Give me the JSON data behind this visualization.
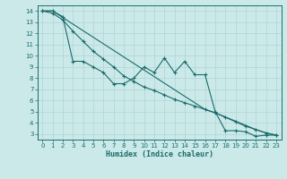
{
  "xlabel": "Humidex (Indice chaleur)",
  "xlim": [
    -0.5,
    23.5
  ],
  "ylim": [
    2.5,
    14.5
  ],
  "yticks": [
    3,
    4,
    5,
    6,
    7,
    8,
    9,
    10,
    11,
    12,
    13,
    14
  ],
  "xticks": [
    0,
    1,
    2,
    3,
    4,
    5,
    6,
    7,
    8,
    9,
    10,
    11,
    12,
    13,
    14,
    15,
    16,
    17,
    18,
    19,
    20,
    21,
    22,
    23
  ],
  "bg_color": "#cce9e9",
  "line_color": "#1a6b6b",
  "grid_color": "#aed4d4",
  "line1_x": [
    0,
    1,
    2,
    3,
    4,
    5,
    6,
    7,
    8,
    9,
    10,
    11,
    12,
    13,
    14,
    15,
    16,
    17,
    18,
    19,
    20,
    21,
    22,
    23
  ],
  "line1_y": [
    14.0,
    14.0,
    13.5,
    9.5,
    9.5,
    9.0,
    8.5,
    7.5,
    7.5,
    8.0,
    9.0,
    8.5,
    9.8,
    8.5,
    9.5,
    8.3,
    8.3,
    5.0,
    3.3,
    3.3,
    3.2,
    2.8,
    2.9,
    2.9
  ],
  "line2_x": [
    0,
    1,
    2,
    3,
    4,
    5,
    6,
    7,
    8,
    9,
    10,
    11,
    12,
    13,
    14,
    15,
    16,
    17,
    18,
    19,
    20,
    21,
    22,
    23
  ],
  "line2_y": [
    14.0,
    13.8,
    13.2,
    12.2,
    11.3,
    10.4,
    9.7,
    9.0,
    8.2,
    7.7,
    7.2,
    6.9,
    6.5,
    6.1,
    5.8,
    5.5,
    5.2,
    4.9,
    4.5,
    4.1,
    3.7,
    3.4,
    3.1,
    2.9
  ],
  "line3_x": [
    0,
    1,
    16,
    17,
    21,
    22,
    23
  ],
  "line3_y": [
    14.0,
    14.0,
    5.2,
    4.9,
    3.4,
    3.1,
    2.9
  ]
}
